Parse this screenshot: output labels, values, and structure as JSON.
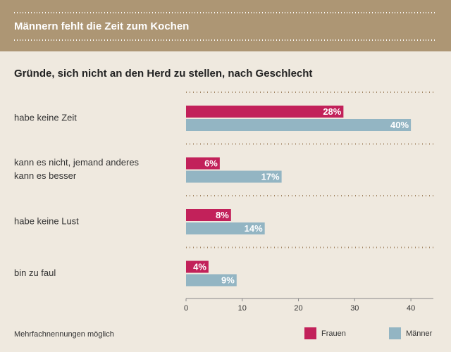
{
  "chart_data": {
    "type": "bar",
    "orientation": "horizontal",
    "title": "Männern fehlt die Zeit zum Kochen",
    "subtitle": "Gründe, sich nicht an den Herd zu stellen, nach Geschlecht",
    "categories": [
      "habe keine Zeit",
      "kann es nicht, jemand anderes\nkann es besser",
      "habe keine Lust",
      "bin zu faul"
    ],
    "series": [
      {
        "name": "Frauen",
        "color": "#c2215a",
        "values": [
          28,
          6,
          8,
          4
        ],
        "value_labels": [
          "28%",
          "6%",
          "8%",
          "4%"
        ]
      },
      {
        "name": "Männer",
        "color": "#93b5c3",
        "values": [
          40,
          17,
          14,
          9
        ],
        "value_labels": [
          "40%",
          "17%",
          "14%",
          "9%"
        ]
      }
    ],
    "xlim": [
      0,
      44
    ],
    "xticks": [
      0,
      10,
      20,
      30,
      40
    ],
    "note": "Mehrfachnennungen möglich"
  }
}
